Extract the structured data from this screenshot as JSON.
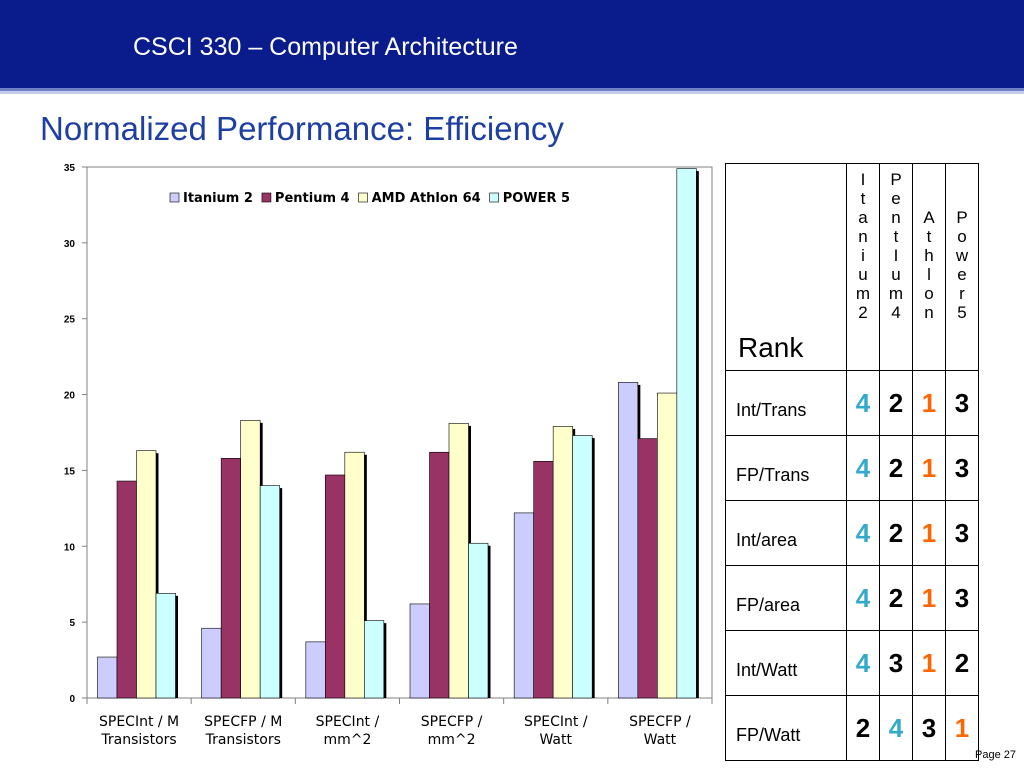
{
  "header": {
    "course_title": "CSCI 330 – Computer Architecture"
  },
  "slide": {
    "title": "Normalized Performance: Efficiency",
    "page": "Page 27"
  },
  "chart_data": {
    "type": "bar",
    "categories": [
      [
        "SPECInt / M",
        "Transistors"
      ],
      [
        "SPECFP / M",
        "Transistors"
      ],
      [
        "SPECInt /",
        "mm^2"
      ],
      [
        "SPECFP /",
        "mm^2"
      ],
      [
        "SPECInt /",
        "Watt"
      ],
      [
        "SPECFP /",
        "Watt"
      ]
    ],
    "series": [
      {
        "name": "Itanium 2",
        "color": "#ccccff",
        "values": [
          2.7,
          4.6,
          3.7,
          6.2,
          12.2,
          20.8
        ]
      },
      {
        "name": "Pentium 4",
        "color": "#993366",
        "values": [
          14.3,
          15.8,
          14.7,
          16.2,
          15.6,
          17.1
        ]
      },
      {
        "name": "AMD Athlon 64",
        "color": "#ffffcc",
        "values": [
          16.3,
          18.3,
          16.2,
          18.1,
          17.9,
          20.1
        ]
      },
      {
        "name": "POWER 5",
        "color": "#ccffff",
        "values": [
          6.9,
          14.0,
          5.1,
          10.2,
          17.3,
          34.9
        ]
      }
    ],
    "ylim": [
      0,
      35
    ],
    "yticks": [
      "0",
      "5",
      "10",
      "15",
      "20",
      "25",
      "30",
      "35"
    ],
    "legend_position": "top",
    "grid": false
  },
  "rank_table": {
    "header_label": "Rank",
    "processors": [
      {
        "chars": [
          "I",
          "t",
          "a",
          "n",
          "i",
          "u",
          "m",
          "2"
        ]
      },
      {
        "chars": [
          "P",
          "e",
          "n",
          "t",
          "I",
          "u",
          "m",
          "4"
        ]
      },
      {
        "chars": [
          "A",
          "t",
          "h",
          "l",
          "o",
          "n"
        ]
      },
      {
        "chars": [
          "P",
          "o",
          "w",
          "e",
          "r",
          "5"
        ]
      }
    ],
    "colors": {
      "rank1": "#ff6600",
      "rank4": "#33aacc",
      "default": "#000000"
    },
    "rows": [
      {
        "label": "Int/Trans",
        "values": [
          "4",
          "2",
          "1",
          "3"
        ]
      },
      {
        "label": "FP/Trans",
        "values": [
          "4",
          "2",
          "1",
          "3"
        ]
      },
      {
        "label": "Int/area",
        "values": [
          "4",
          "2",
          "1",
          "3"
        ]
      },
      {
        "label": "FP/area",
        "values": [
          "4",
          "2",
          "1",
          "3"
        ]
      },
      {
        "label": "Int/Watt",
        "values": [
          "4",
          "3",
          "1",
          "2"
        ]
      },
      {
        "label": "FP/Watt",
        "values": [
          "2",
          "4",
          "3",
          "1"
        ]
      }
    ]
  }
}
